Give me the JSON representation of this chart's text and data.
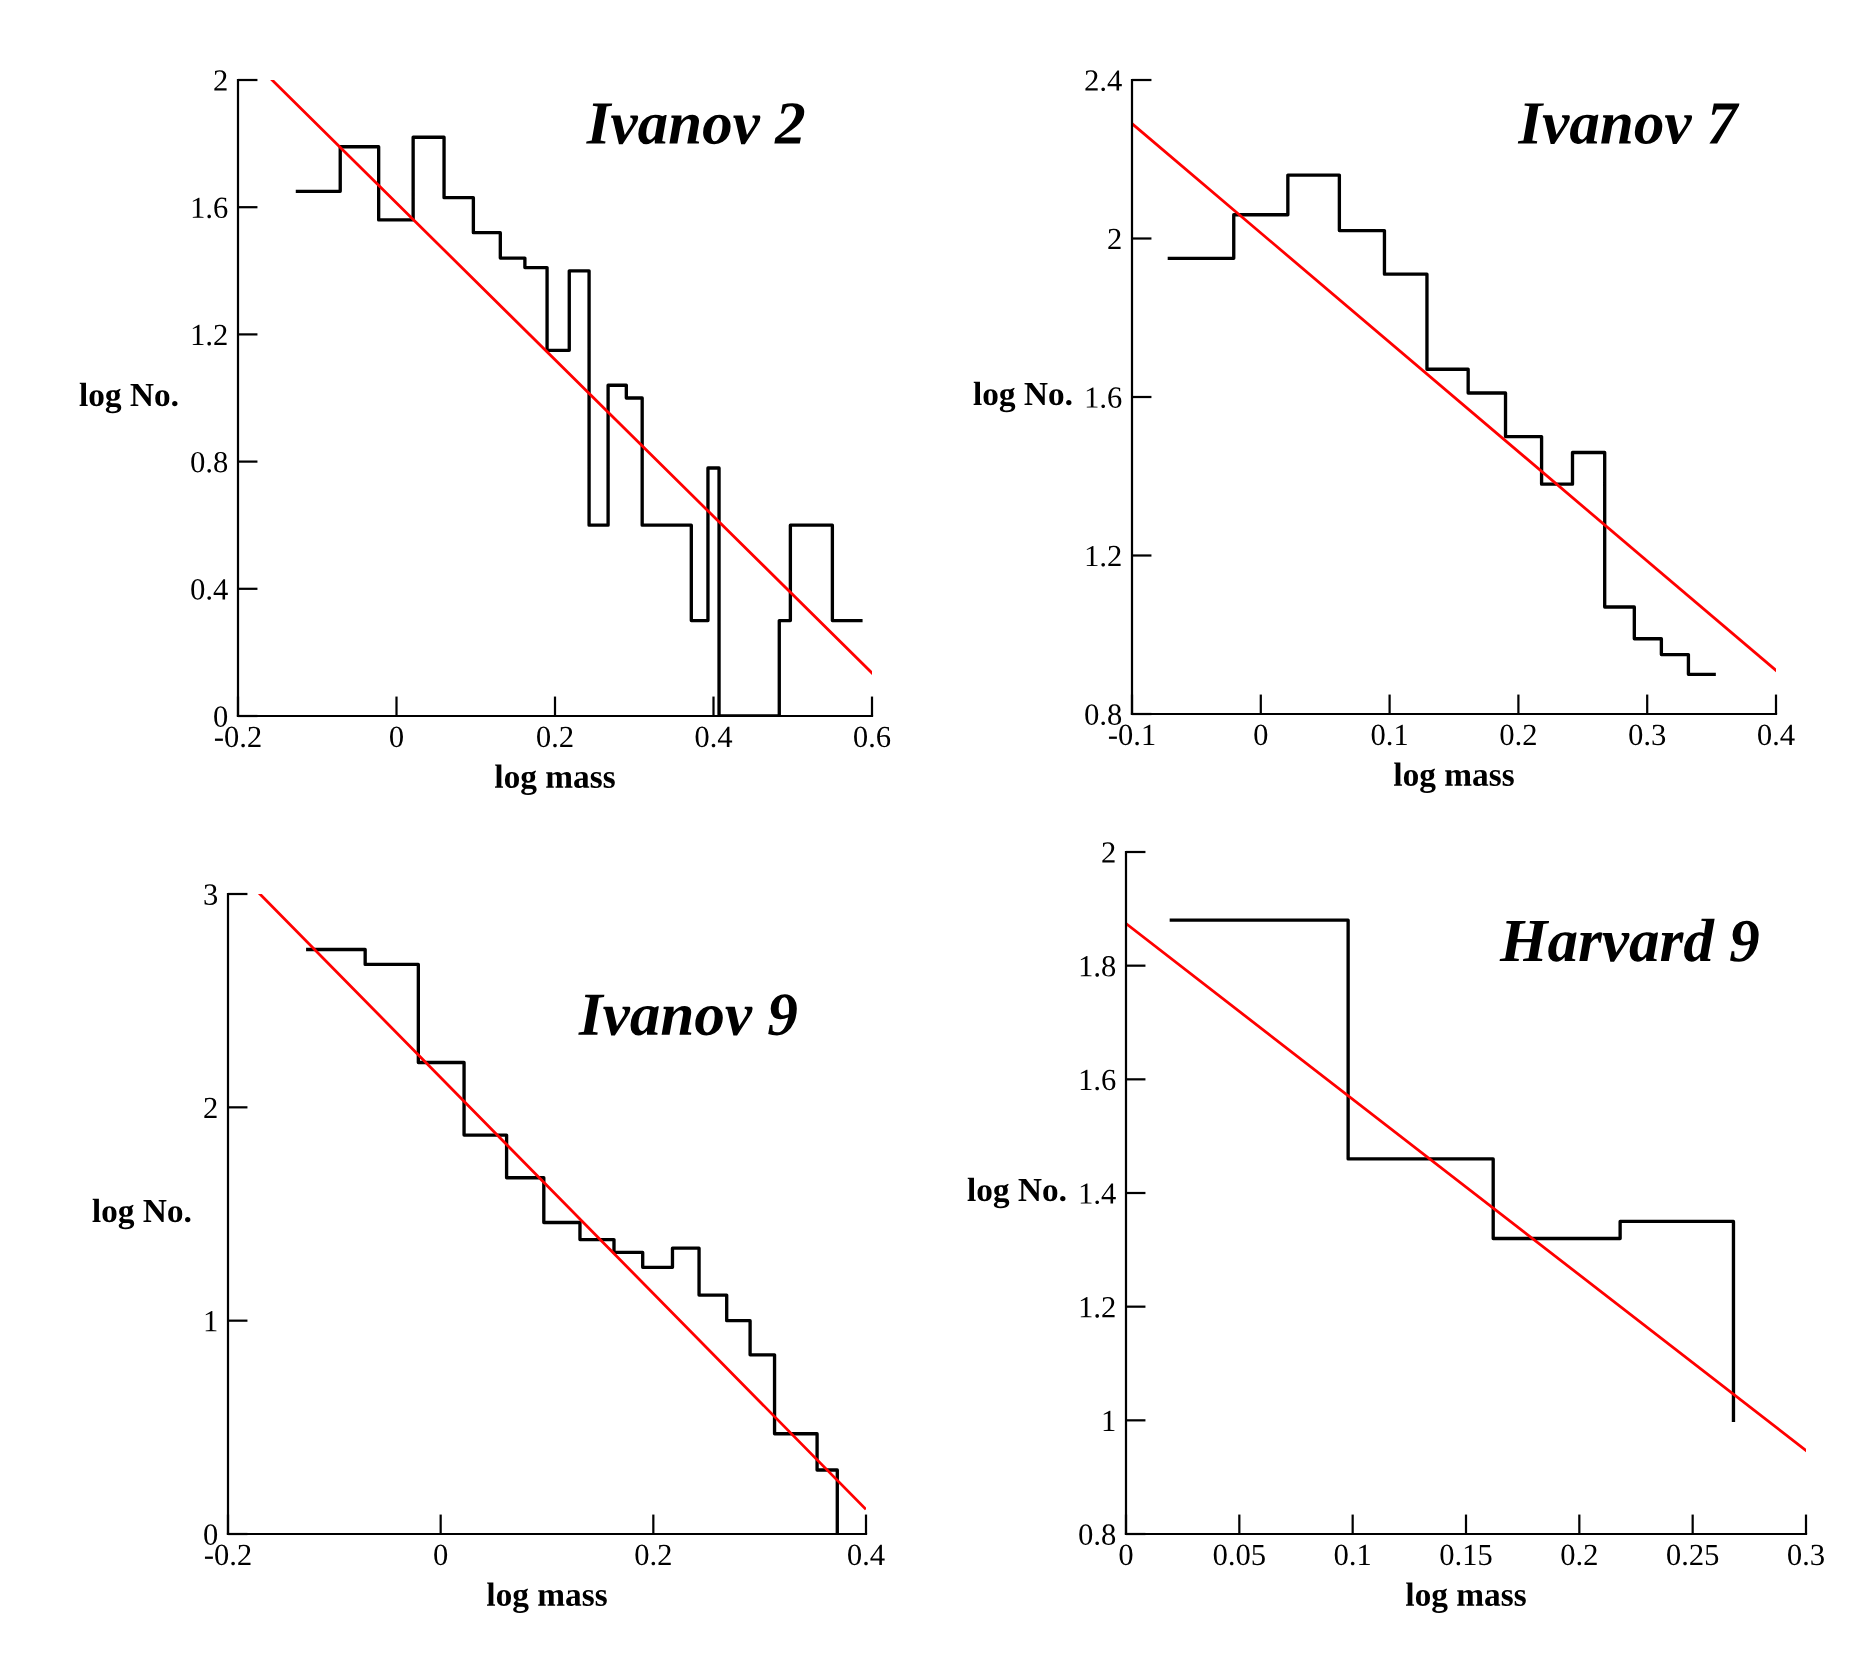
{
  "chart_data": [
    {
      "type": "step",
      "title": "Ivanov 2",
      "xlabel": "log mass",
      "ylabel": "log No.",
      "xlim": [
        -0.2,
        0.6
      ],
      "xticks": [
        -0.2,
        0,
        0.2,
        0.4,
        0.6
      ],
      "ylim": [
        0,
        2
      ],
      "yticks": [
        0,
        0.4,
        0.8,
        1.2,
        1.6,
        2
      ],
      "series": [
        {
          "color": "#000000",
          "x": [
            -0.125,
            -0.071,
            -0.0225,
            0.021,
            0.06,
            0.097,
            0.131,
            0.162,
            0.19,
            0.218,
            0.243,
            0.267,
            0.29,
            0.31,
            0.372,
            0.393,
            0.407,
            0.483,
            0.497,
            0.55,
            0.586
          ],
          "values": [
            1.65,
            1.79,
            1.56,
            1.82,
            1.63,
            1.52,
            1.44,
            1.41,
            1.15,
            1.4,
            0.6,
            1.04,
            1.0,
            0.6,
            0.3,
            0.78,
            0,
            0.3,
            0.6,
            0.3,
            0.3
          ]
        },
        {
          "type": "line",
          "color": "#ff0000",
          "x": [
            -0.157,
            0.6
          ],
          "values": [
            2.0,
            0.135
          ]
        }
      ]
    },
    {
      "type": "step",
      "title": "Ivanov 7",
      "xlabel": "log mass",
      "ylabel": "log No.",
      "xlim": [
        -0.1,
        0.4
      ],
      "xticks": [
        -0.1,
        0,
        0.1,
        0.2,
        0.3,
        0.4
      ],
      "ylim": [
        0.8,
        2.4
      ],
      "yticks": [
        0.8,
        1.2,
        1.6,
        2,
        2.4
      ],
      "series": [
        {
          "color": "#000000",
          "x": [
            -0.071,
            -0.021,
            0.021,
            0.061,
            0.096,
            0.129,
            0.161,
            0.19,
            0.218,
            0.242,
            0.267,
            0.29,
            0.311,
            0.332,
            0.352
          ],
          "values": [
            1.95,
            2.06,
            2.16,
            2.02,
            1.91,
            1.67,
            1.61,
            1.5,
            1.38,
            1.46,
            1.07,
            0.99,
            0.95,
            0.9,
            0.9
          ]
        },
        {
          "type": "line",
          "color": "#ff0000",
          "x": [
            -0.1,
            0.4
          ],
          "values": [
            2.29,
            0.91
          ]
        }
      ]
    },
    {
      "type": "step",
      "title": "Ivanov 9",
      "xlabel": "log mass",
      "ylabel": "log No.",
      "xlim": [
        -0.2,
        0.4
      ],
      "xticks": [
        -0.2,
        0,
        0.2,
        0.4
      ],
      "ylim": [
        0,
        3
      ],
      "yticks": [
        0,
        1,
        2,
        3
      ],
      "series": [
        {
          "color": "#000000",
          "x": [
            -0.125,
            -0.071,
            -0.021,
            0.022,
            0.062,
            0.097,
            0.131,
            0.163,
            0.19,
            0.218,
            0.243,
            0.269,
            0.291,
            0.314,
            0.354,
            0.373
          ],
          "values": [
            2.74,
            2.67,
            2.21,
            1.87,
            1.67,
            1.46,
            1.38,
            1.32,
            1.25,
            1.34,
            1.12,
            1.0,
            0.84,
            0.47,
            0.3,
            0
          ]
        },
        {
          "type": "line",
          "color": "#ff0000",
          "x": [
            -0.17,
            0.399
          ],
          "values": [
            3.0,
            0.12
          ]
        }
      ]
    },
    {
      "type": "step",
      "title": "Harvard 9",
      "xlabel": "log mass",
      "ylabel": "log No.",
      "xlim": [
        0,
        0.3
      ],
      "xticks": [
        0,
        0.05,
        0.1,
        0.15,
        0.2,
        0.25,
        0.3
      ],
      "ylim": [
        0.8,
        2
      ],
      "yticks": [
        0.8,
        1,
        1.2,
        1.4,
        1.6,
        1.8,
        2
      ],
      "series": [
        {
          "color": "#000000",
          "x": [
            0.02,
            0.098,
            0.162,
            0.218,
            0.268
          ],
          "values": [
            1.88,
            1.46,
            1.32,
            1.35,
            1.0
          ]
        },
        {
          "type": "line",
          "color": "#ff0000",
          "x": [
            0,
            0.3
          ],
          "values": [
            1.874,
            0.947
          ]
        }
      ]
    }
  ]
}
